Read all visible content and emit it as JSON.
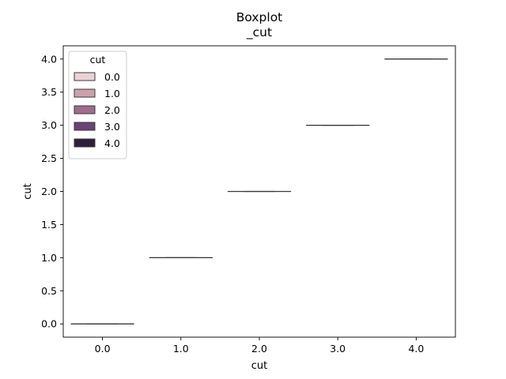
{
  "chart_data": {
    "type": "box",
    "title": "Boxplot\n_cut",
    "title_lines": [
      "Boxplot",
      "_cut"
    ],
    "xlabel": "cut",
    "ylabel": "cut",
    "categories": [
      "0.0",
      "1.0",
      "2.0",
      "3.0",
      "4.0"
    ],
    "ylim": [
      -0.2,
      4.2
    ],
    "yticks": [
      "0.0",
      "0.5",
      "1.0",
      "1.5",
      "2.0",
      "2.5",
      "3.0",
      "3.5",
      "4.0"
    ],
    "ytick_values": [
      0,
      0.5,
      1,
      1.5,
      2,
      2.5,
      3,
      3.5,
      4
    ],
    "series": [
      {
        "name": "0.0",
        "category": "0.0",
        "min": 0,
        "q1": 0,
        "median": 0,
        "q3": 0,
        "max": 0,
        "color": "#ebd3d5"
      },
      {
        "name": "1.0",
        "category": "1.0",
        "min": 1,
        "q1": 1,
        "median": 1,
        "q3": 1,
        "max": 1,
        "color": "#cda1ac"
      },
      {
        "name": "2.0",
        "category": "2.0",
        "min": 2,
        "q1": 2,
        "median": 2,
        "q3": 2,
        "max": 2,
        "color": "#a06c8e"
      },
      {
        "name": "3.0",
        "category": "3.0",
        "min": 3,
        "q1": 3,
        "median": 3,
        "q3": 3,
        "max": 3,
        "color": "#6a4372"
      },
      {
        "name": "4.0",
        "category": "4.0",
        "min": 4,
        "q1": 4,
        "median": 4,
        "q3": 4,
        "max": 4,
        "color": "#2e1e3c"
      }
    ],
    "legend": {
      "title": "cut",
      "position": "upper-left"
    },
    "grid": false
  }
}
